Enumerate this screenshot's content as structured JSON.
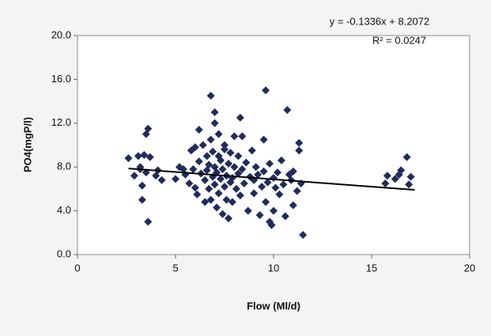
{
  "chart_data": {
    "type": "scatter",
    "x_label": "Flow (Ml/d)",
    "y_label": "PO4(mgP/l)",
    "color": "#1f2d5c",
    "x": [
      2.6,
      2.9,
      3.1,
      3.2,
      3.3,
      3.3,
      3.4,
      3.5,
      3.5,
      3.6,
      3.6,
      3.7,
      3.2,
      4.1,
      4.3,
      4.0,
      5.0,
      5.2,
      5.5,
      5.7,
      5.8,
      5.9,
      6.0,
      6.1,
      6.2,
      6.2,
      6.3,
      6.4,
      6.5,
      6.5,
      6.6,
      6.6,
      6.7,
      6.7,
      6.8,
      6.8,
      6.8,
      6.9,
      6.9,
      7.0,
      7.0,
      7.0,
      7.1,
      7.1,
      7.2,
      7.2,
      7.2,
      7.3,
      7.3,
      7.4,
      7.4,
      7.5,
      7.5,
      7.5,
      7.6,
      7.6,
      7.7,
      7.7,
      7.8,
      7.8,
      7.9,
      7.9,
      8.0,
      8.0,
      8.1,
      8.2,
      8.2,
      8.3,
      8.4,
      8.5,
      8.6,
      8.7,
      8.8,
      8.9,
      9.0,
      9.0,
      9.1,
      9.2,
      9.3,
      9.4,
      9.5,
      9.5,
      9.6,
      9.6,
      9.7,
      9.8,
      9.8,
      9.9,
      10.0,
      10.0,
      10.1,
      10.2,
      10.3,
      10.4,
      10.5,
      10.6,
      10.7,
      10.8,
      10.9,
      11.0,
      11.0,
      11.2,
      11.3,
      11.3,
      11.4,
      11.5,
      8.3,
      7.0,
      8.4,
      6.0,
      5.4,
      15.7,
      15.8,
      16.2,
      16.4,
      16.5,
      16.8,
      17.0,
      16.9
    ],
    "y": [
      8.8,
      7.2,
      9.0,
      8.0,
      6.3,
      5.0,
      9.1,
      7.5,
      11.0,
      11.5,
      3.0,
      8.9,
      7.8,
      7.7,
      6.8,
      7.2,
      6.9,
      8.0,
      7.3,
      6.5,
      9.5,
      7.8,
      6.1,
      5.5,
      11.4,
      8.5,
      7.4,
      10.0,
      6.8,
      4.8,
      9.0,
      7.7,
      6.0,
      8.2,
      14.5,
      10.5,
      5.0,
      7.1,
      9.4,
      12.0,
      8.0,
      6.4,
      4.3,
      7.5,
      11.0,
      9.0,
      5.6,
      6.9,
      8.6,
      3.7,
      7.8,
      10.0,
      6.2,
      9.6,
      7.2,
      5.0,
      8.3,
      3.3,
      6.6,
      9.3,
      7.0,
      4.8,
      8.0,
      10.8,
      6.0,
      7.4,
      9.0,
      5.4,
      7.8,
      6.5,
      8.4,
      4.0,
      7.1,
      9.5,
      6.8,
      5.6,
      8.0,
      7.3,
      3.6,
      6.2,
      10.5,
      7.6,
      15.0,
      4.8,
      6.6,
      3.0,
      8.3,
      2.7,
      7.0,
      4.0,
      6.1,
      7.5,
      5.5,
      8.6,
      6.4,
      3.5,
      13.2,
      7.3,
      6.8,
      4.5,
      7.6,
      5.8,
      10.2,
      9.5,
      6.5,
      1.8,
      12.5,
      13.0,
      10.8,
      9.8,
      7.8,
      6.5,
      7.2,
      6.9,
      7.3,
      7.7,
      8.9,
      7.1,
      6.4
    ],
    "trendline": {
      "equation": "y = -0.1336x + 8.2072",
      "r2": "R² = 0.0247",
      "slope": -0.1336,
      "intercept": 8.2072,
      "xlim": [
        2.6,
        17.2
      ]
    },
    "xlim": [
      0,
      20
    ],
    "xticks": [
      0,
      5,
      10,
      15,
      20
    ],
    "ylim": [
      0,
      20
    ],
    "yticks": [
      {
        "value": 0,
        "label": "0.0"
      },
      {
        "value": 4,
        "label": "4.0"
      },
      {
        "value": 8,
        "label": "8.0"
      },
      {
        "value": 12,
        "label": "12.0"
      },
      {
        "value": 16,
        "label": "16.0"
      },
      {
        "value": 20,
        "label": "20.0"
      }
    ]
  }
}
